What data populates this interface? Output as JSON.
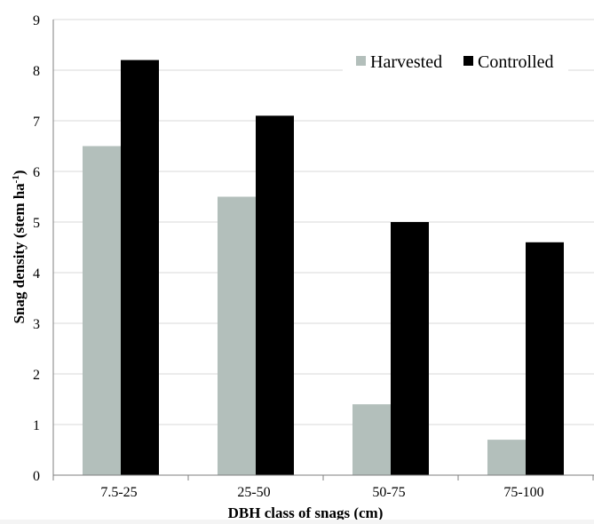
{
  "chart_data": {
    "type": "bar",
    "categories": [
      "7.5-25",
      "25-50",
      "50-75",
      "75-100"
    ],
    "series": [
      {
        "name": "Harvested",
        "values": [
          6.5,
          5.5,
          1.4,
          0.7
        ],
        "color": "#b3bfbb"
      },
      {
        "name": "Controlled",
        "values": [
          8.2,
          7.1,
          5.0,
          4.6
        ],
        "color": "#000000"
      }
    ],
    "title": "",
    "xlabel": "DBH class of snags (cm)",
    "ylabel": "Snag density (stem ha",
    "ylabel_superscript": "-1",
    "ylabel_suffix": ")",
    "ylim": [
      0,
      9
    ],
    "yticks": [
      "0",
      "1",
      "2",
      "3",
      "4",
      "5",
      "6",
      "7",
      "8",
      "9"
    ],
    "grid": true,
    "legend_position": "top-right"
  }
}
